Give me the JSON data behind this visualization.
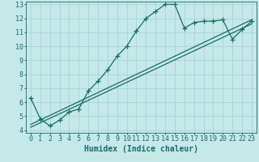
{
  "title": "",
  "xlabel": "Humidex (Indice chaleur)",
  "background_color": "#c5e8e8",
  "grid_color": "#aad4d4",
  "line_color": "#1a6b6b",
  "xlim": [
    -0.5,
    23.5
  ],
  "ylim": [
    3.8,
    13.2
  ],
  "yticks": [
    4,
    5,
    6,
    7,
    8,
    9,
    10,
    11,
    12,
    13
  ],
  "xticks": [
    0,
    1,
    2,
    3,
    4,
    5,
    6,
    7,
    8,
    9,
    10,
    11,
    12,
    13,
    14,
    15,
    16,
    17,
    18,
    19,
    20,
    21,
    22,
    23
  ],
  "series1_x": [
    0,
    1,
    2,
    3,
    4,
    5,
    6,
    7,
    8,
    9,
    10,
    11,
    12,
    13,
    14,
    15,
    16,
    17,
    18,
    19,
    20,
    21,
    22,
    23
  ],
  "series1_y": [
    6.3,
    4.8,
    4.3,
    4.7,
    5.3,
    5.5,
    6.8,
    7.5,
    8.3,
    9.3,
    10.0,
    11.1,
    12.0,
    12.5,
    13.0,
    13.0,
    11.3,
    11.7,
    11.8,
    11.8,
    11.9,
    10.5,
    11.2,
    11.8
  ],
  "series2_x": [
    0,
    23
  ],
  "series2_y": [
    4.4,
    11.9
  ],
  "series3_x": [
    0,
    23
  ],
  "series3_y": [
    4.2,
    11.6
  ],
  "marker_size": 4,
  "line_width": 0.9,
  "xlabel_fontsize": 7,
  "tick_fontsize": 6
}
